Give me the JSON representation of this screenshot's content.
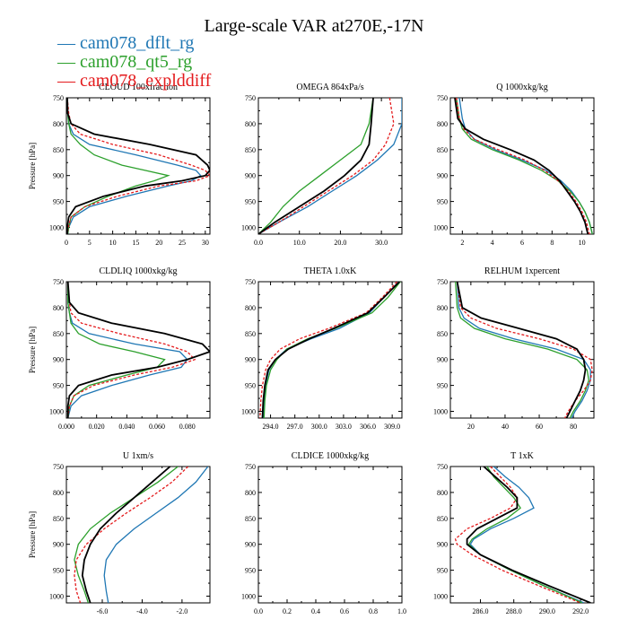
{
  "title": "Large-scale VAR at270E,-17N",
  "legend": [
    {
      "name": "cam078_dflt_rg",
      "color": "#1f77b4",
      "dash": "solid"
    },
    {
      "name": "cam078_qt5_rg",
      "color": "#2ca02c",
      "dash": "solid"
    },
    {
      "name": "cam078_explddiff",
      "color": "#e41a1c",
      "dash": "dashed"
    }
  ],
  "extra_series": [
    {
      "color": "#000000",
      "dash": "solid"
    }
  ],
  "chart_data": [
    {
      "type": "line",
      "title": "CLOUD 100xfraction",
      "ylabel": "Pressure [hPa]",
      "xlim": [
        0,
        31
      ],
      "ylim": [
        750,
        1013
      ],
      "xticks": [
        0,
        5,
        10,
        15,
        20,
        25,
        30
      ],
      "xtick_labels": [
        "0",
        "5",
        "10",
        "15",
        "20",
        "25",
        "30"
      ],
      "yticks": [
        750,
        800,
        850,
        900,
        950,
        1000
      ],
      "ytick_labels": [
        "750",
        "800",
        "850",
        "900",
        "950",
        "1000"
      ],
      "y": [
        750,
        780,
        800,
        820,
        840,
        860,
        880,
        890,
        900,
        910,
        920,
        940,
        960,
        980,
        1000,
        1013
      ],
      "series": [
        {
          "color": "#1f77b4",
          "dash": "solid",
          "values": [
            0.2,
            0.3,
            0.5,
            1.5,
            5,
            15,
            24,
            28,
            29,
            27,
            22,
            13,
            5,
            1.5,
            0.5,
            0.3
          ]
        },
        {
          "color": "#2ca02c",
          "dash": "solid",
          "values": [
            0.2,
            0.3,
            0.5,
            1,
            3,
            6,
            12,
            17,
            22,
            19,
            15,
            9,
            4,
            1,
            0.5,
            0.3
          ]
        },
        {
          "color": "#e41a1c",
          "dash": "dashed",
          "values": [
            0.2,
            0.5,
            1,
            3,
            10,
            20,
            27,
            30,
            31,
            28,
            20,
            11,
            4,
            1,
            0.4,
            0.2
          ]
        },
        {
          "color": "#000000",
          "dash": "solid",
          "values": [
            0.2,
            0.3,
            1,
            6,
            18,
            28,
            30.5,
            31,
            30,
            25,
            17,
            8,
            2,
            0.5,
            0.2,
            0.2
          ]
        }
      ]
    },
    {
      "type": "line",
      "title": "OMEGA  864xPa/s",
      "ylabel": "",
      "xlim": [
        0,
        35
      ],
      "ylim": [
        750,
        1013
      ],
      "xticks": [
        0,
        10,
        20,
        30
      ],
      "xtick_labels": [
        "0.0",
        "10.0",
        "20.0",
        "30.0"
      ],
      "yticks": [
        750,
        800,
        850,
        900,
        950,
        1000
      ],
      "ytick_labels": [
        "750",
        "800",
        "850",
        "900",
        "950",
        "1000"
      ],
      "y": [
        750,
        800,
        840,
        870,
        900,
        930,
        960,
        990,
        1013
      ],
      "series": [
        {
          "color": "#1f77b4",
          "dash": "solid",
          "values": [
            35,
            35,
            33,
            29,
            24,
            18,
            12,
            5,
            0
          ]
        },
        {
          "color": "#2ca02c",
          "dash": "solid",
          "values": [
            28,
            27,
            25,
            20,
            15,
            10,
            6,
            3,
            0
          ]
        },
        {
          "color": "#e41a1c",
          "dash": "dashed",
          "values": [
            32,
            33,
            31,
            28,
            23,
            17,
            11,
            5,
            0
          ]
        },
        {
          "color": "#000000",
          "dash": "solid",
          "values": [
            28,
            27.5,
            27,
            25,
            21,
            16,
            10,
            4,
            0
          ]
        }
      ]
    },
    {
      "type": "line",
      "title": "Q  1000xkg/kg",
      "ylabel": "",
      "xlim": [
        1.2,
        10.8
      ],
      "ylim": [
        750,
        1013
      ],
      "xticks": [
        2,
        4,
        6,
        8,
        10
      ],
      "xtick_labels": [
        "2",
        "4",
        "6",
        "8",
        "10"
      ],
      "yticks": [
        750,
        800,
        850,
        900,
        950,
        1000
      ],
      "ytick_labels": [
        "750",
        "800",
        "850",
        "900",
        "950",
        "1000"
      ],
      "y": [
        750,
        790,
        810,
        830,
        850,
        870,
        890,
        910,
        930,
        950,
        970,
        990,
        1013
      ],
      "series": [
        {
          "color": "#1f77b4",
          "dash": "solid",
          "values": [
            1.8,
            2.0,
            2.2,
            2.8,
            4.2,
            6.0,
            7.6,
            8.6,
            9.3,
            9.8,
            10.2,
            10.5,
            10.7
          ]
        },
        {
          "color": "#2ca02c",
          "dash": "solid",
          "values": [
            1.6,
            1.8,
            2.0,
            2.6,
            4.0,
            5.8,
            7.3,
            8.4,
            9.2,
            9.8,
            10.2,
            10.5,
            10.7
          ]
        },
        {
          "color": "#e41a1c",
          "dash": "dashed",
          "values": [
            1.6,
            1.8,
            2.1,
            2.8,
            4.4,
            6.2,
            7.5,
            8.4,
            9.1,
            9.6,
            10.0,
            10.3,
            10.5
          ]
        },
        {
          "color": "#000000",
          "dash": "solid",
          "values": [
            1.5,
            1.7,
            2.2,
            3.4,
            5.2,
            6.8,
            7.8,
            8.5,
            9.0,
            9.5,
            9.9,
            10.2,
            10.4
          ]
        }
      ]
    },
    {
      "type": "line",
      "title": "CLDLIQ  1000xkg/kg",
      "ylabel": "Pressure [hPa]",
      "xlim": [
        0,
        0.095
      ],
      "ylim": [
        750,
        1013
      ],
      "xticks": [
        0,
        0.02,
        0.04,
        0.06,
        0.08
      ],
      "xtick_labels": [
        "0.000",
        "0.020",
        "0.040",
        "0.060",
        "0.080"
      ],
      "yticks": [
        750,
        800,
        850,
        900,
        950,
        1000
      ],
      "ytick_labels": [
        "750",
        "800",
        "850",
        "900",
        "950",
        "1000"
      ],
      "y": [
        750,
        790,
        810,
        830,
        850,
        870,
        885,
        900,
        915,
        930,
        950,
        970,
        990,
        1013
      ],
      "series": [
        {
          "color": "#1f77b4",
          "dash": "solid",
          "values": [
            0.001,
            0.001,
            0.002,
            0.004,
            0.015,
            0.045,
            0.075,
            0.08,
            0.076,
            0.055,
            0.03,
            0.01,
            0.003,
            0.001
          ]
        },
        {
          "color": "#2ca02c",
          "dash": "solid",
          "values": [
            0.001,
            0.001,
            0.002,
            0.003,
            0.008,
            0.022,
            0.045,
            0.065,
            0.06,
            0.04,
            0.015,
            0.005,
            0.002,
            0.001
          ]
        },
        {
          "color": "#e41a1c",
          "dash": "dashed",
          "values": [
            0.001,
            0.002,
            0.003,
            0.01,
            0.035,
            0.065,
            0.08,
            0.085,
            0.07,
            0.045,
            0.018,
            0.005,
            0.002,
            0.001
          ]
        },
        {
          "color": "#000000",
          "dash": "solid",
          "values": [
            0.001,
            0.002,
            0.008,
            0.03,
            0.065,
            0.09,
            0.095,
            0.08,
            0.06,
            0.03,
            0.008,
            0.002,
            0.001,
            0.001
          ]
        }
      ]
    },
    {
      "type": "line",
      "title": "THETA  1.0xK",
      "ylabel": "",
      "xlim": [
        292.5,
        310.2
      ],
      "ylim": [
        750,
        1013
      ],
      "xticks": [
        294,
        297,
        300,
        303,
        306,
        309
      ],
      "xtick_labels": [
        "294.0",
        "297.0",
        "300.0",
        "303.0",
        "306.0",
        "309.0"
      ],
      "yticks": [
        750,
        800,
        850,
        900,
        950,
        1000
      ],
      "ytick_labels": [
        "750",
        "800",
        "850",
        "900",
        "950",
        "1000"
      ],
      "y": [
        750,
        780,
        810,
        840,
        860,
        880,
        900,
        920,
        950,
        980,
        1013
      ],
      "series": [
        {
          "color": "#1f77b4",
          "dash": "solid",
          "values": [
            309.8,
            308.0,
            306.2,
            302.5,
            299.0,
            296.0,
            294.6,
            293.8,
            293.4,
            293.2,
            293.1
          ]
        },
        {
          "color": "#2ca02c",
          "dash": "solid",
          "values": [
            310.0,
            308.5,
            306.5,
            302.0,
            298.6,
            296.0,
            294.8,
            294.0,
            293.5,
            293.3,
            293.2
          ]
        },
        {
          "color": "#e41a1c",
          "dash": "dashed",
          "values": [
            309.6,
            307.8,
            305.8,
            301.2,
            297.6,
            295.2,
            294.0,
            293.4,
            293.0,
            292.8,
            292.7
          ]
        },
        {
          "color": "#000000",
          "dash": "solid",
          "values": [
            309.9,
            308.0,
            306.0,
            301.8,
            298.8,
            296.2,
            294.6,
            293.7,
            293.3,
            293.1,
            293.0
          ]
        }
      ]
    },
    {
      "type": "line",
      "title": "RELHUM  1xpercent",
      "ylabel": "",
      "xlim": [
        8,
        92
      ],
      "ylim": [
        750,
        1013
      ],
      "xticks": [
        20,
        40,
        60,
        80
      ],
      "xtick_labels": [
        "20",
        "40",
        "60",
        "80"
      ],
      "yticks": [
        750,
        800,
        850,
        900,
        950,
        1000
      ],
      "ytick_labels": [
        "750",
        "800",
        "850",
        "900",
        "950",
        "1000"
      ],
      "y": [
        750,
        800,
        820,
        840,
        860,
        880,
        900,
        920,
        940,
        960,
        980,
        1000,
        1013
      ],
      "series": [
        {
          "color": "#1f77b4",
          "dash": "solid",
          "values": [
            12,
            13,
            16,
            25,
            45,
            70,
            86,
            90,
            90,
            88,
            85,
            81,
            79
          ]
        },
        {
          "color": "#2ca02c",
          "dash": "solid",
          "values": [
            11,
            12,
            14,
            22,
            40,
            65,
            82,
            88,
            89,
            87,
            84,
            80,
            78
          ]
        },
        {
          "color": "#e41a1c",
          "dash": "dashed",
          "values": [
            12,
            14,
            20,
            35,
            60,
            80,
            90,
            91,
            90,
            86,
            81,
            77,
            75
          ]
        },
        {
          "color": "#000000",
          "dash": "solid",
          "values": [
            12,
            15,
            26,
            48,
            70,
            82,
            86,
            87,
            86,
            84,
            81,
            78,
            76
          ]
        }
      ]
    },
    {
      "type": "line",
      "title": "U  1xm/s",
      "ylabel": "Pressure [hPa]",
      "xlim": [
        -7.8,
        -0.6
      ],
      "ylim": [
        750,
        1013
      ],
      "xticks": [
        -6,
        -4,
        -2
      ],
      "xtick_labels": [
        "-6.0",
        "-4.0",
        "-2.0"
      ],
      "yticks": [
        750,
        800,
        850,
        900,
        950,
        1000
      ],
      "ytick_labels": [
        "750",
        "800",
        "850",
        "900",
        "950",
        "1000"
      ],
      "y": [
        750,
        780,
        810,
        840,
        870,
        900,
        930,
        960,
        990,
        1013
      ],
      "series": [
        {
          "color": "#1f77b4",
          "dash": "solid",
          "values": [
            -0.7,
            -1.3,
            -2.2,
            -3.3,
            -4.4,
            -5.3,
            -5.8,
            -5.9,
            -5.8,
            -5.7
          ]
        },
        {
          "color": "#2ca02c",
          "dash": "solid",
          "values": [
            -2.2,
            -3.2,
            -4.4,
            -5.6,
            -6.6,
            -7.2,
            -7.4,
            -7.2,
            -6.9,
            -6.7
          ]
        },
        {
          "color": "#e41a1c",
          "dash": "dashed",
          "values": [
            -1.7,
            -2.5,
            -3.6,
            -4.8,
            -5.9,
            -6.8,
            -7.3,
            -7.4,
            -7.3,
            -7.1
          ]
        },
        {
          "color": "#000000",
          "dash": "solid",
          "values": [
            -2.6,
            -3.5,
            -4.4,
            -5.3,
            -6.1,
            -6.6,
            -6.9,
            -7.0,
            -6.8,
            -6.6
          ]
        }
      ]
    },
    {
      "type": "line",
      "title": "CLDICE  1000xkg/kg",
      "ylabel": "",
      "xlim": [
        0,
        1
      ],
      "ylim": [
        750,
        1013
      ],
      "xticks": [
        0,
        0.2,
        0.4,
        0.6,
        0.8,
        1.0
      ],
      "xtick_labels": [
        "0.0",
        "0.2",
        "0.4",
        "0.6",
        "0.8",
        "1.0"
      ],
      "yticks": [
        750,
        800,
        850,
        900,
        950,
        1000
      ],
      "ytick_labels": [
        "750",
        "800",
        "850",
        "900",
        "950",
        "1000"
      ],
      "y": [],
      "series": []
    },
    {
      "type": "line",
      "title": "T  1xK",
      "ylabel": "",
      "xlim": [
        284.2,
        292.8
      ],
      "ylim": [
        750,
        1013
      ],
      "xticks": [
        286,
        288,
        290,
        292
      ],
      "xtick_labels": [
        "286.0",
        "288.0",
        "290.0",
        "292.0"
      ],
      "yticks": [
        750,
        800,
        850,
        900,
        950,
        1000
      ],
      "ytick_labels": [
        "750",
        "800",
        "850",
        "900",
        "950",
        "1000"
      ],
      "y": [
        750,
        770,
        790,
        810,
        830,
        850,
        870,
        890,
        900,
        920,
        950,
        980,
        1013
      ],
      "series": [
        {
          "color": "#1f77b4",
          "dash": "solid",
          "values": [
            286.8,
            287.5,
            288.3,
            288.9,
            289.2,
            288.0,
            286.6,
            285.6,
            285.4,
            286.0,
            287.8,
            289.8,
            292.2
          ]
        },
        {
          "color": "#2ca02c",
          "dash": "solid",
          "values": [
            286.4,
            286.8,
            287.4,
            288.0,
            288.4,
            287.6,
            286.4,
            285.5,
            285.3,
            286.0,
            287.8,
            289.8,
            292.1
          ]
        },
        {
          "color": "#e41a1c",
          "dash": "dashed",
          "values": [
            286.6,
            287.2,
            287.8,
            288.2,
            287.8,
            286.6,
            285.2,
            284.5,
            284.6,
            285.5,
            287.3,
            289.5,
            292.0
          ]
        },
        {
          "color": "#000000",
          "dash": "solid",
          "values": [
            286.2,
            286.9,
            287.6,
            288.2,
            288.2,
            287.0,
            285.8,
            285.2,
            285.2,
            286.0,
            287.9,
            290.1,
            292.6
          ]
        }
      ]
    }
  ]
}
